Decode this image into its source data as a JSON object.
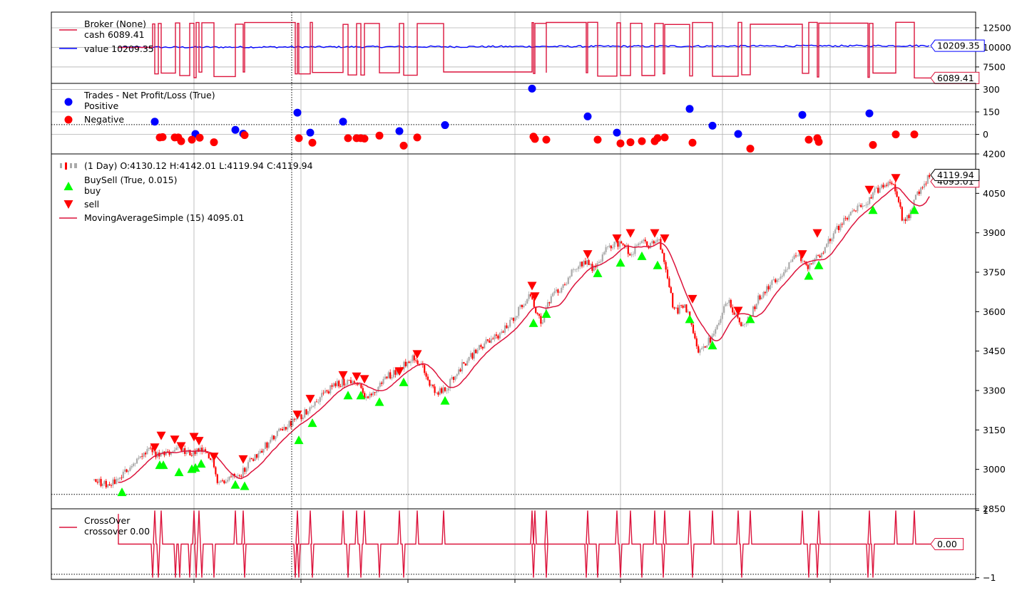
{
  "chart_data": [
    {
      "type": "line",
      "panel": "broker",
      "legend": {
        "title": "Broker (None)",
        "entries": [
          {
            "label": "cash 6089.41",
            "color": "#dc143c"
          },
          {
            "label": "value 10209.35",
            "color": "#0000ff"
          }
        ]
      },
      "ylim": [
        5400,
        14500
      ],
      "yticks": [
        7500,
        10000,
        12500
      ],
      "ytick_labels": [
        "7500",
        "10000",
        "12500"
      ],
      "grid": true,
      "last_value_labels": [
        {
          "text": "10209.35",
          "value": 10209.35,
          "color": "#0000ff"
        },
        {
          "text": "6089.41",
          "value": 6089.41,
          "color": "#dc143c"
        }
      ],
      "series": [
        {
          "name": "cash",
          "color": "#dc143c",
          "low": 6089.41,
          "high": 13200
        },
        {
          "name": "value",
          "color": "#0000ff",
          "start": 10000,
          "end": 10209.35
        }
      ]
    },
    {
      "type": "scatter",
      "panel": "trades",
      "legend": {
        "title": "Trades - Net Profit/Loss (True)",
        "entries": [
          {
            "label": "Positive",
            "color": "#0000ff"
          },
          {
            "label": "Negative",
            "color": "#ff0000"
          }
        ]
      },
      "ylim": [
        -130,
        340
      ],
      "yticks": [
        0,
        150,
        300
      ],
      "ytick_labels": [
        "0",
        "150",
        "300"
      ],
      "hline": 65,
      "positive": [
        [
          217,
          85
        ],
        [
          274,
          3
        ],
        [
          330,
          30
        ],
        [
          341,
          5
        ],
        [
          417,
          145
        ],
        [
          435,
          12
        ],
        [
          481,
          85
        ],
        [
          560,
          22
        ],
        [
          624,
          62
        ],
        [
          746,
          305
        ],
        [
          824,
          120
        ],
        [
          865,
          12
        ],
        [
          967,
          170
        ],
        [
          999,
          58
        ],
        [
          1035,
          3
        ],
        [
          1125,
          130
        ],
        [
          1219,
          140
        ]
      ],
      "negative": [
        [
          224,
          -20
        ],
        [
          228,
          -18
        ],
        [
          245,
          -20
        ],
        [
          250,
          -20
        ],
        [
          254,
          -45
        ],
        [
          269,
          -35
        ],
        [
          280,
          -22
        ],
        [
          300,
          -52
        ],
        [
          343,
          -5
        ],
        [
          419,
          -25
        ],
        [
          438,
          -55
        ],
        [
          488,
          -25
        ],
        [
          500,
          -25
        ],
        [
          506,
          -25
        ],
        [
          511,
          -28
        ],
        [
          532,
          -8
        ],
        [
          566,
          -75
        ],
        [
          585,
          -20
        ],
        [
          748,
          -15
        ],
        [
          750,
          -30
        ],
        [
          766,
          -35
        ],
        [
          838,
          -35
        ],
        [
          870,
          -60
        ],
        [
          884,
          -52
        ],
        [
          900,
          -45
        ],
        [
          918,
          -45
        ],
        [
          922,
          -25
        ],
        [
          932,
          -20
        ],
        [
          971,
          -55
        ],
        [
          1052,
          -95
        ],
        [
          1134,
          -35
        ],
        [
          1146,
          -25
        ],
        [
          1148,
          -50
        ],
        [
          1224,
          -70
        ],
        [
          1256,
          0
        ],
        [
          1282,
          0
        ]
      ]
    },
    {
      "type": "candlestick",
      "panel": "price",
      "legend": {
        "entries": [
          {
            "label": " (1 Day) O:4130.12 H:4142.01 L:4119.94 C:4119.94",
            "color": "#aaaaaa"
          },
          {
            "label": "BuySell (True, 0.015)",
            "color": null
          },
          {
            "label": "buy",
            "color": "#00ff00"
          },
          {
            "label": "sell",
            "color": "#ff0000"
          },
          {
            "label": "MovingAverageSimple (15) 4095.01",
            "color": "#dc143c"
          }
        ]
      },
      "ylim": [
        2850,
        4200
      ],
      "yticks": [
        2850,
        3000,
        3150,
        3300,
        3450,
        3600,
        3750,
        3900,
        4050,
        4200
      ],
      "ytick_labels": [
        "2850",
        "3000",
        "3150",
        "3300",
        "3450",
        "3600",
        "3750",
        "3900",
        "4050",
        "4200"
      ],
      "hline": 2905,
      "last_value_labels": [
        {
          "text": "4095.01",
          "value": 4095.01,
          "color": "#dc143c"
        },
        {
          "text": "4119.94",
          "value": 4119.94,
          "color": "#000000"
        }
      ],
      "anchors": [
        [
          132,
          2960
        ],
        [
          150,
          2940
        ],
        [
          168,
          2965
        ],
        [
          185,
          3020
        ],
        [
          200,
          3050
        ],
        [
          212,
          3075
        ],
        [
          220,
          3050
        ],
        [
          232,
          3055
        ],
        [
          250,
          3080
        ],
        [
          264,
          3060
        ],
        [
          284,
          3070
        ],
        [
          300,
          3020
        ],
        [
          305,
          2960
        ],
        [
          318,
          2950
        ],
        [
          325,
          2990
        ],
        [
          338,
          2985
        ],
        [
          350,
          3030
        ],
        [
          372,
          3090
        ],
        [
          395,
          3150
        ],
        [
          410,
          3180
        ],
        [
          422,
          3200
        ],
        [
          435,
          3240
        ],
        [
          450,
          3280
        ],
        [
          470,
          3320
        ],
        [
          490,
          3340
        ],
        [
          505,
          3310
        ],
        [
          515,
          3270
        ],
        [
          525,
          3290
        ],
        [
          540,
          3350
        ],
        [
          560,
          3380
        ],
        [
          570,
          3410
        ],
        [
          580,
          3430
        ],
        [
          590,
          3400
        ],
        [
          600,
          3340
        ],
        [
          610,
          3290
        ],
        [
          624,
          3300
        ],
        [
          640,
          3370
        ],
        [
          660,
          3430
        ],
        [
          680,
          3480
        ],
        [
          700,
          3510
        ],
        [
          718,
          3570
        ],
        [
          735,
          3640
        ],
        [
          745,
          3660
        ],
        [
          752,
          3600
        ],
        [
          760,
          3560
        ],
        [
          770,
          3640
        ],
        [
          790,
          3700
        ],
        [
          810,
          3780
        ],
        [
          822,
          3790
        ],
        [
          834,
          3760
        ],
        [
          848,
          3830
        ],
        [
          862,
          3860
        ],
        [
          875,
          3860
        ],
        [
          885,
          3810
        ],
        [
          898,
          3870
        ],
        [
          910,
          3850
        ],
        [
          922,
          3880
        ],
        [
          932,
          3790
        ],
        [
          945,
          3600
        ],
        [
          960,
          3620
        ],
        [
          968,
          3570
        ],
        [
          980,
          3450
        ],
        [
          990,
          3480
        ],
        [
          1000,
          3500
        ],
        [
          1010,
          3580
        ],
        [
          1020,
          3640
        ],
        [
          1030,
          3600
        ],
        [
          1042,
          3540
        ],
        [
          1055,
          3600
        ],
        [
          1065,
          3660
        ],
        [
          1080,
          3700
        ],
        [
          1095,
          3740
        ],
        [
          1110,
          3800
        ],
        [
          1122,
          3810
        ],
        [
          1130,
          3770
        ],
        [
          1140,
          3790
        ],
        [
          1150,
          3820
        ],
        [
          1162,
          3870
        ],
        [
          1178,
          3930
        ],
        [
          1200,
          3990
        ],
        [
          1215,
          4010
        ],
        [
          1228,
          4060
        ],
        [
          1243,
          4090
        ],
        [
          1252,
          4100
        ],
        [
          1258,
          4040
        ],
        [
          1265,
          3950
        ],
        [
          1275,
          3970
        ],
        [
          1290,
          4070
        ],
        [
          1305,
          4120
        ]
      ],
      "buy": [
        [
          171,
          2912
        ],
        [
          224,
          3015
        ],
        [
          229,
          3015
        ],
        [
          251,
          2988
        ],
        [
          269,
          3000
        ],
        [
          274,
          3005
        ],
        [
          282,
          3020
        ],
        [
          330,
          2940
        ],
        [
          343,
          2935
        ],
        [
          419,
          3110
        ],
        [
          438,
          3175
        ],
        [
          488,
          3280
        ],
        [
          506,
          3280
        ],
        [
          532,
          3255
        ],
        [
          566,
          3330
        ],
        [
          624,
          3260
        ],
        [
          748,
          3555
        ],
        [
          766,
          3590
        ],
        [
          838,
          3745
        ],
        [
          870,
          3785
        ],
        [
          900,
          3810
        ],
        [
          922,
          3775
        ],
        [
          967,
          3570
        ],
        [
          999,
          3470
        ],
        [
          1052,
          3570
        ],
        [
          1134,
          3735
        ],
        [
          1148,
          3775
        ],
        [
          1224,
          3985
        ],
        [
          1282,
          3985
        ]
      ],
      "sell": [
        [
          217,
          3085
        ],
        [
          226,
          3130
        ],
        [
          245,
          3115
        ],
        [
          254,
          3090
        ],
        [
          272,
          3125
        ],
        [
          279,
          3110
        ],
        [
          300,
          3050
        ],
        [
          341,
          3040
        ],
        [
          417,
          3210
        ],
        [
          435,
          3270
        ],
        [
          481,
          3360
        ],
        [
          500,
          3355
        ],
        [
          511,
          3345
        ],
        [
          560,
          3375
        ],
        [
          585,
          3440
        ],
        [
          746,
          3700
        ],
        [
          750,
          3660
        ],
        [
          824,
          3820
        ],
        [
          865,
          3880
        ],
        [
          884,
          3900
        ],
        [
          918,
          3900
        ],
        [
          932,
          3880
        ],
        [
          971,
          3650
        ],
        [
          1035,
          3605
        ],
        [
          1125,
          3820
        ],
        [
          1146,
          3900
        ],
        [
          1219,
          4065
        ],
        [
          1256,
          4110
        ]
      ]
    },
    {
      "type": "line",
      "panel": "crossover",
      "legend": {
        "title": "CrossOver",
        "entries": [
          {
            "label": "crossover 0.00",
            "color": "#dc143c"
          }
        ]
      },
      "ylim": [
        -1.05,
        1.05
      ],
      "yticks": [
        -1,
        1
      ],
      "ytick_labels": [
        "−1",
        "1"
      ],
      "hline": -0.9,
      "last_value_labels": [
        {
          "text": "0.00",
          "value": 0.0,
          "color": "#dc143c"
        }
      ],
      "up_spikes": [
        217,
        226,
        272,
        279,
        330,
        341,
        417,
        435,
        481,
        500,
        511,
        560,
        585,
        622,
        746,
        750,
        766,
        824,
        865,
        884,
        918,
        932,
        967,
        999,
        1035,
        1052,
        1125,
        1148,
        1219,
        1256,
        1282
      ],
      "down_spikes": [
        214,
        222,
        246,
        252,
        266,
        275,
        283,
        300,
        343,
        414,
        419,
        438,
        488,
        506,
        532,
        566,
        748,
        766,
        822,
        838,
        870,
        900,
        930,
        971,
        1040,
        1134,
        1146,
        1217,
        1224
      ],
      "x_range": [
        166,
        1305
      ]
    }
  ],
  "xaxis": {
    "grid_x": [
      272,
      422,
      572,
      722,
      870,
      1013,
      1164
    ],
    "cursor_x": 409
  }
}
